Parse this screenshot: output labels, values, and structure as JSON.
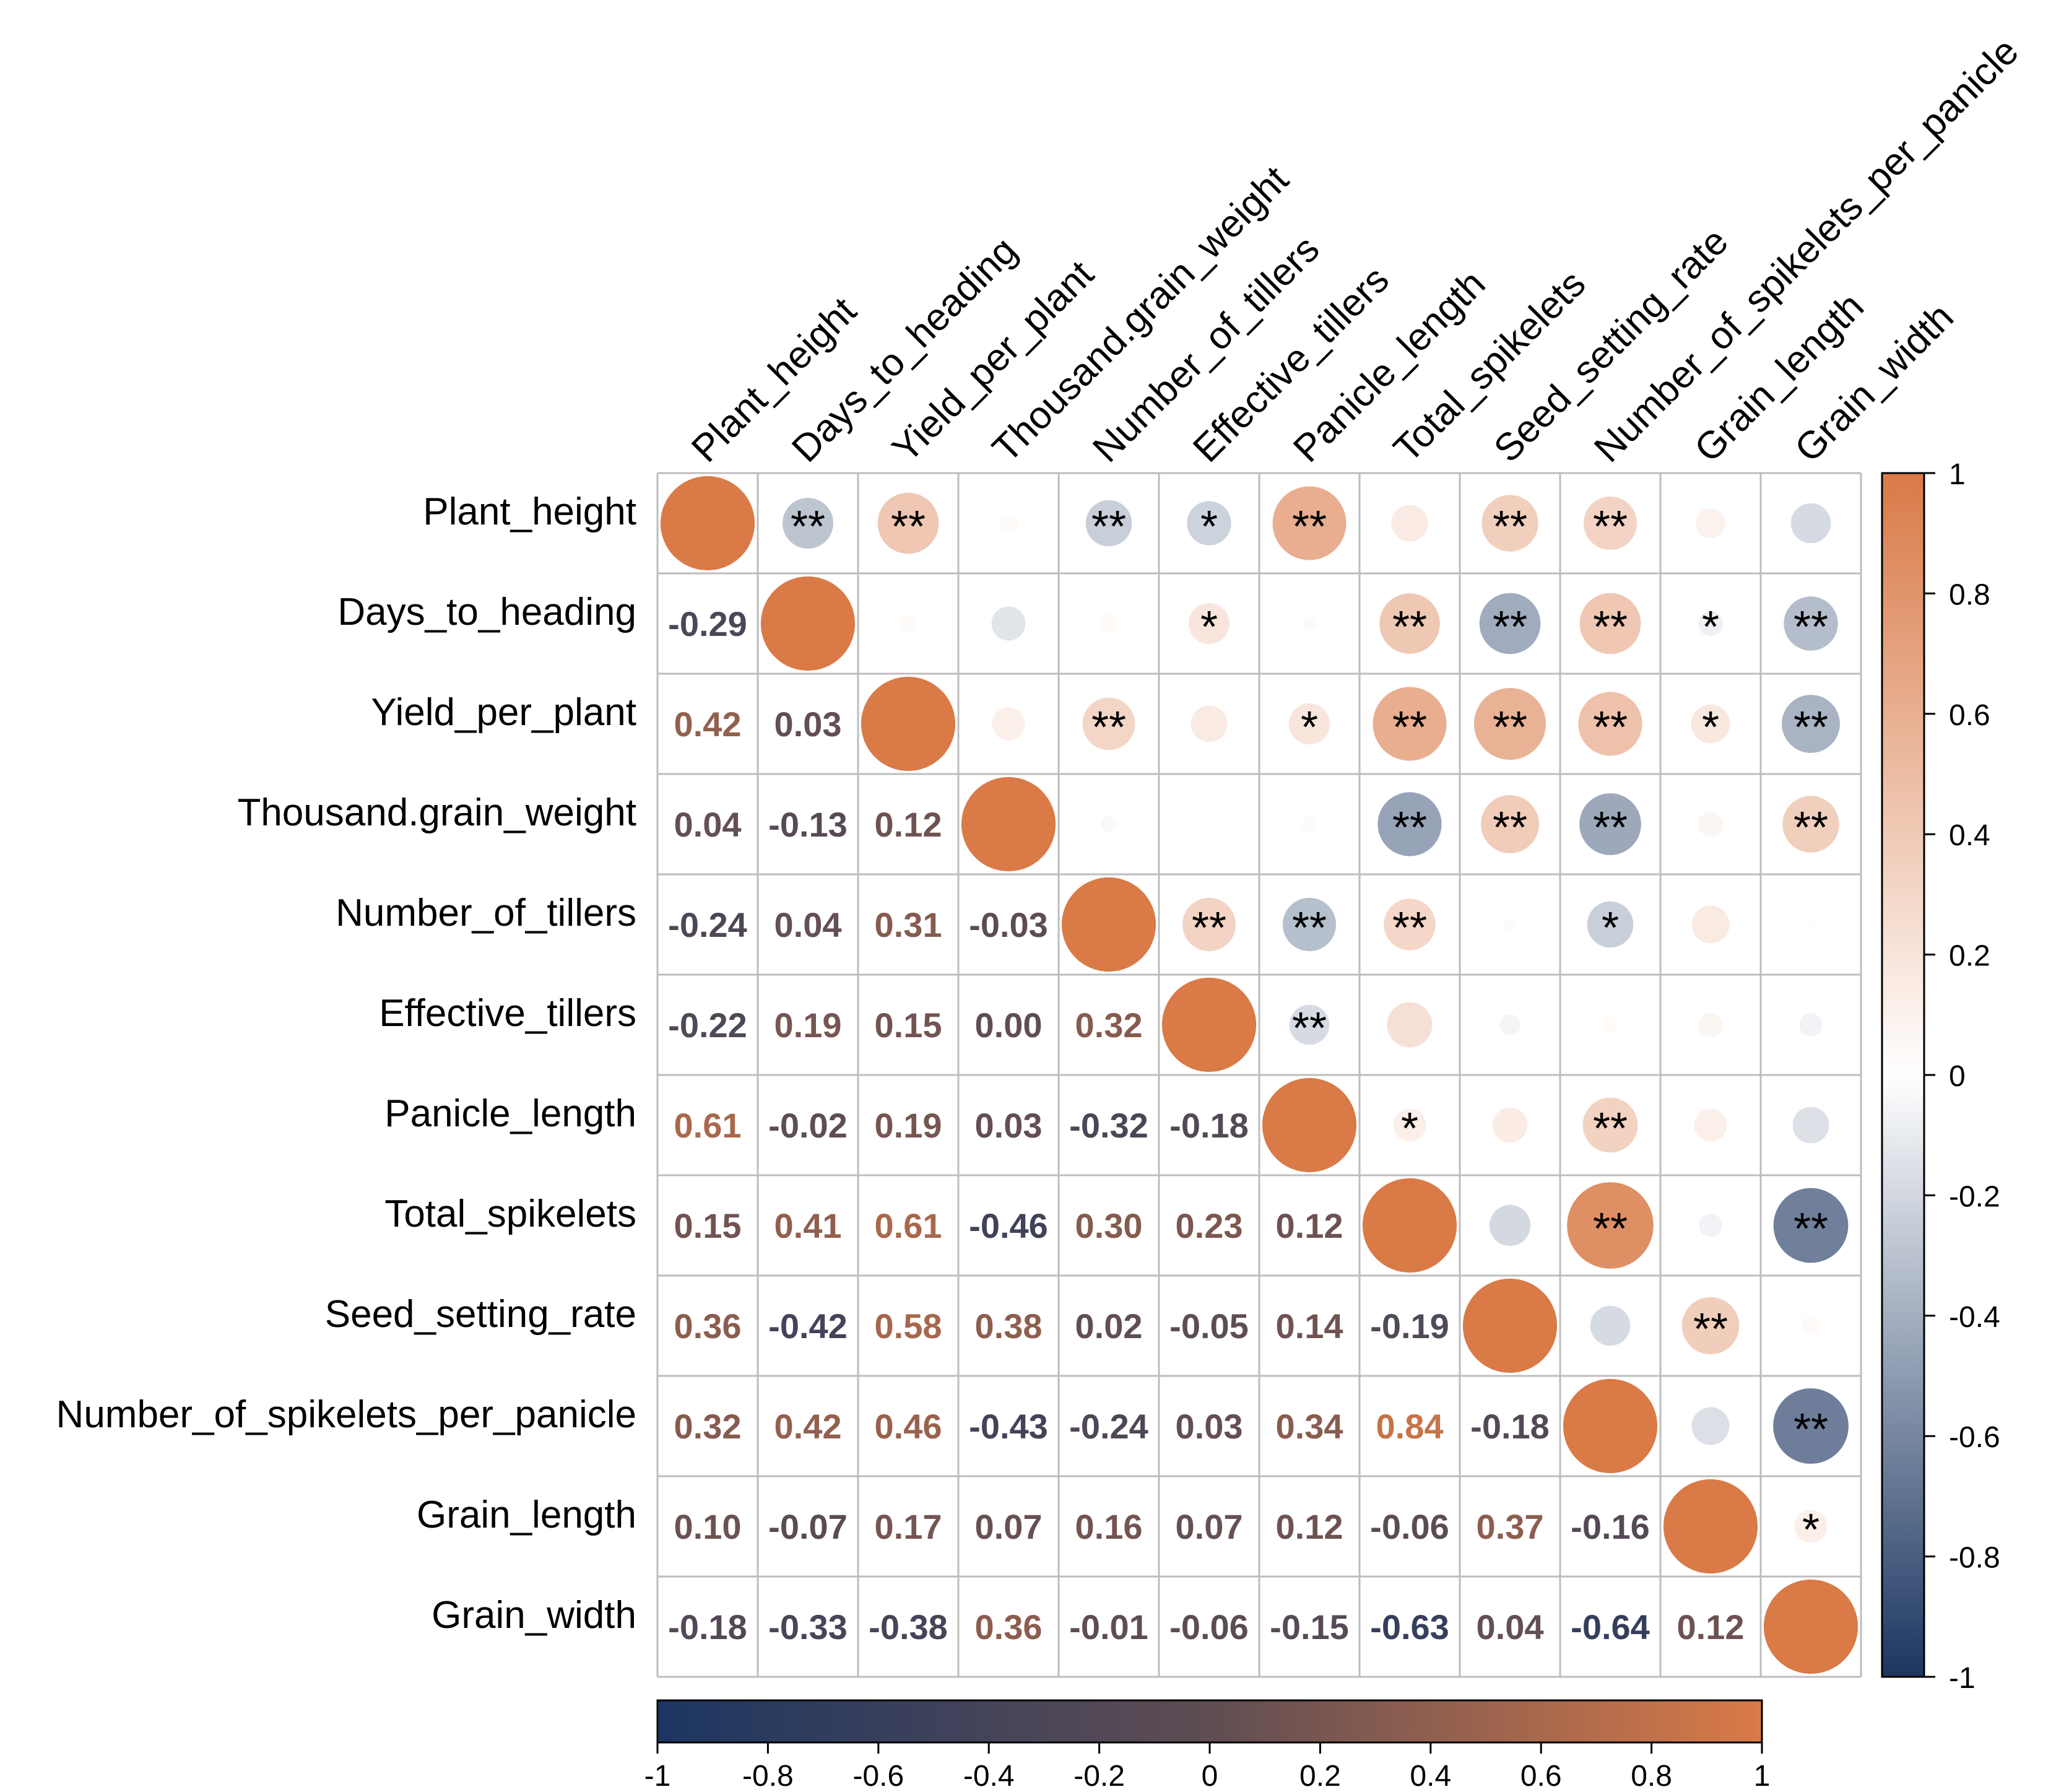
{
  "chart_data": {
    "type": "heatmap",
    "title": "",
    "variables": [
      "Plant_height",
      "Days_to_heading",
      "Yield_per_plant",
      "Thousand.grain_weight",
      "Number_of_tillers",
      "Effective_tillers",
      "Panicle_length",
      "Total_spikelets",
      "Seed_setting_rate",
      "Number_of_spikelets_per_panicle",
      "Grain_length",
      "Grain_width"
    ],
    "matrix": [
      [
        1.0,
        -0.29,
        0.42,
        0.04,
        -0.24,
        -0.22,
        0.61,
        0.15,
        0.36,
        0.32,
        0.1,
        -0.18
      ],
      [
        -0.29,
        1.0,
        0.03,
        -0.13,
        0.04,
        0.19,
        -0.02,
        0.41,
        -0.42,
        0.42,
        -0.07,
        -0.33
      ],
      [
        0.42,
        0.03,
        1.0,
        0.12,
        0.31,
        0.15,
        0.19,
        0.61,
        0.58,
        0.46,
        0.17,
        -0.38
      ],
      [
        0.04,
        -0.13,
        0.12,
        1.0,
        -0.03,
        0.0,
        0.03,
        -0.46,
        0.38,
        -0.43,
        0.07,
        0.36
      ],
      [
        -0.24,
        0.04,
        0.31,
        -0.03,
        1.0,
        0.32,
        -0.32,
        0.3,
        0.02,
        -0.24,
        0.16,
        -0.01
      ],
      [
        -0.22,
        0.19,
        0.15,
        0.0,
        0.32,
        1.0,
        -0.18,
        0.23,
        -0.05,
        0.03,
        0.07,
        -0.06
      ],
      [
        0.61,
        -0.02,
        0.19,
        0.03,
        -0.32,
        -0.18,
        1.0,
        0.12,
        0.14,
        0.34,
        0.12,
        -0.15
      ],
      [
        0.15,
        0.41,
        0.61,
        -0.46,
        0.3,
        0.23,
        0.12,
        1.0,
        -0.19,
        0.84,
        -0.06,
        -0.63
      ],
      [
        0.36,
        -0.42,
        0.58,
        0.38,
        0.02,
        -0.05,
        0.14,
        -0.19,
        1.0,
        -0.18,
        0.37,
        0.04
      ],
      [
        0.32,
        0.42,
        0.46,
        -0.43,
        -0.24,
        0.03,
        0.34,
        0.84,
        -0.18,
        1.0,
        -0.16,
        -0.64
      ],
      [
        0.1,
        -0.07,
        0.17,
        0.07,
        0.16,
        0.07,
        0.12,
        -0.06,
        0.37,
        -0.16,
        1.0,
        0.12
      ],
      [
        -0.18,
        -0.33,
        -0.38,
        0.36,
        -0.01,
        -0.06,
        -0.15,
        -0.63,
        0.04,
        -0.64,
        0.12,
        1.0
      ]
    ],
    "significance_upper": [
      [
        "",
        "**",
        "**",
        "",
        "**",
        "*",
        "**",
        "",
        "**",
        "**",
        "",
        ""
      ],
      [
        "",
        "",
        "",
        "",
        "",
        "*",
        "",
        "**",
        "**",
        "**",
        "*",
        "**"
      ],
      [
        "",
        "",
        "",
        "",
        "**",
        "",
        "*",
        "**",
        "**",
        "**",
        "*",
        "**"
      ],
      [
        "",
        "",
        "",
        "",
        "",
        "",
        "",
        "**",
        "**",
        "**",
        "",
        "**"
      ],
      [
        "",
        "",
        "",
        "",
        "",
        "**",
        "**",
        "**",
        "",
        "*",
        "",
        ""
      ],
      [
        "",
        "",
        "",
        "",
        "",
        "",
        "**",
        "",
        "",
        "",
        "",
        ""
      ],
      [
        "",
        "",
        "",
        "",
        "",
        "",
        "",
        "*",
        "",
        "**",
        "",
        ""
      ],
      [
        "",
        "",
        "",
        "",
        "",
        "",
        "",
        "",
        "",
        "**",
        "",
        "**"
      ],
      [
        "",
        "",
        "",
        "",
        "",
        "",
        "",
        "",
        "",
        "",
        "**",
        ""
      ],
      [
        "",
        "",
        "",
        "",
        "",
        "",
        "",
        "",
        "",
        "",
        "",
        "**"
      ],
      [
        "",
        "",
        "",
        "",
        "",
        "",
        "",
        "",
        "",
        "",
        "",
        "*"
      ],
      [
        "",
        "",
        "",
        "",
        "",
        "",
        "",
        "",
        "",
        "",
        "",
        ""
      ]
    ],
    "lower_triangle": "numbers",
    "upper_triangle": "circles",
    "color_range": [
      -1,
      1
    ],
    "colors": {
      "negative": "#1c3661",
      "mid": "#ffffff",
      "positive": "#d97a47",
      "grid": "#bdbdbd"
    },
    "number_colors": {
      "negative": "#1c3661",
      "mid": "#5f4d53",
      "positive": "#d97a47"
    },
    "colorbar_right": {
      "ticks": [
        "1",
        "0.8",
        "0.6",
        "0.4",
        "0.2",
        "0",
        "-0.2",
        "-0.4",
        "-0.6",
        "-0.8",
        "-1"
      ]
    },
    "colorbar_bottom": {
      "ticks": [
        "-1",
        "-0.8",
        "-0.6",
        "-0.4",
        "-0.2",
        "0",
        "0.2",
        "0.4",
        "0.6",
        "0.8",
        "1"
      ]
    }
  }
}
